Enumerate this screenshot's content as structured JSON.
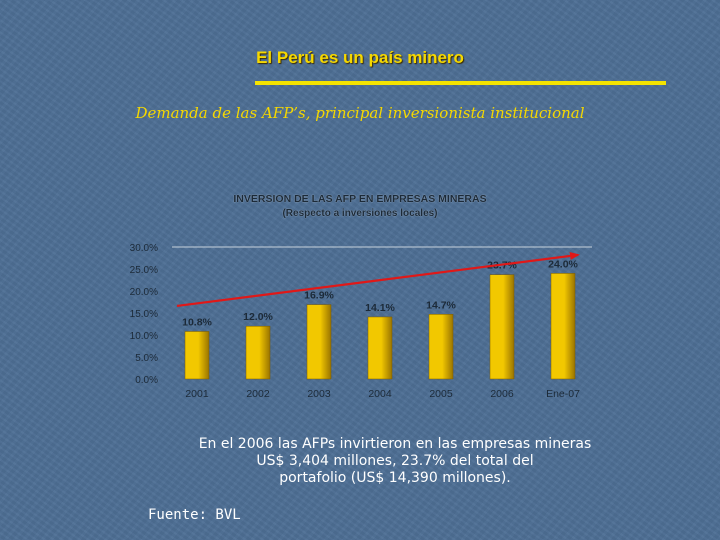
{
  "slide": {
    "title": "El Perú es un país minero",
    "subtitle": "Demanda de las AFP’s, principal inversionista institucional",
    "caption_lines": [
      "En el 2006 las AFPs invirtieron  en las empresas mineras",
      "US$ 3,404 millones, 23.7% del total del",
      "portafolio (US$  14,390 millones)."
    ],
    "source": "Fuente: BVL"
  },
  "colors": {
    "background": "#4e6f95",
    "title": "#f5d800",
    "bar_fill": "#f2c800",
    "bar_shade": "#9a7400",
    "trend_arrow": "#e01818",
    "axis_text": "#1c2a38"
  },
  "chart_data": {
    "type": "bar",
    "title": "INVERSION DE LAS AFP EN EMPRESAS MINERAS",
    "subtitle": "(Respecto a inversiones locales)",
    "categories": [
      "2001",
      "2002",
      "2003",
      "2004",
      "2005",
      "2006",
      "Ene-07"
    ],
    "values": [
      10.8,
      12.0,
      16.9,
      14.1,
      14.7,
      23.7,
      24.0
    ],
    "value_labels": [
      "10.8%",
      "12.0%",
      "16.9%",
      "14.1%",
      "14.7%",
      "23.7%",
      "24.0%"
    ],
    "ylim": [
      0,
      30
    ],
    "yticks": [
      0,
      5,
      10,
      15,
      20,
      25,
      30
    ],
    "ytick_labels": [
      "0.0%",
      "5.0%",
      "10.0%",
      "15.0%",
      "20.0%",
      "25.0%",
      "30.0%"
    ],
    "xlabel": "",
    "ylabel": "",
    "annotations": [
      "upward trend arrow"
    ]
  }
}
